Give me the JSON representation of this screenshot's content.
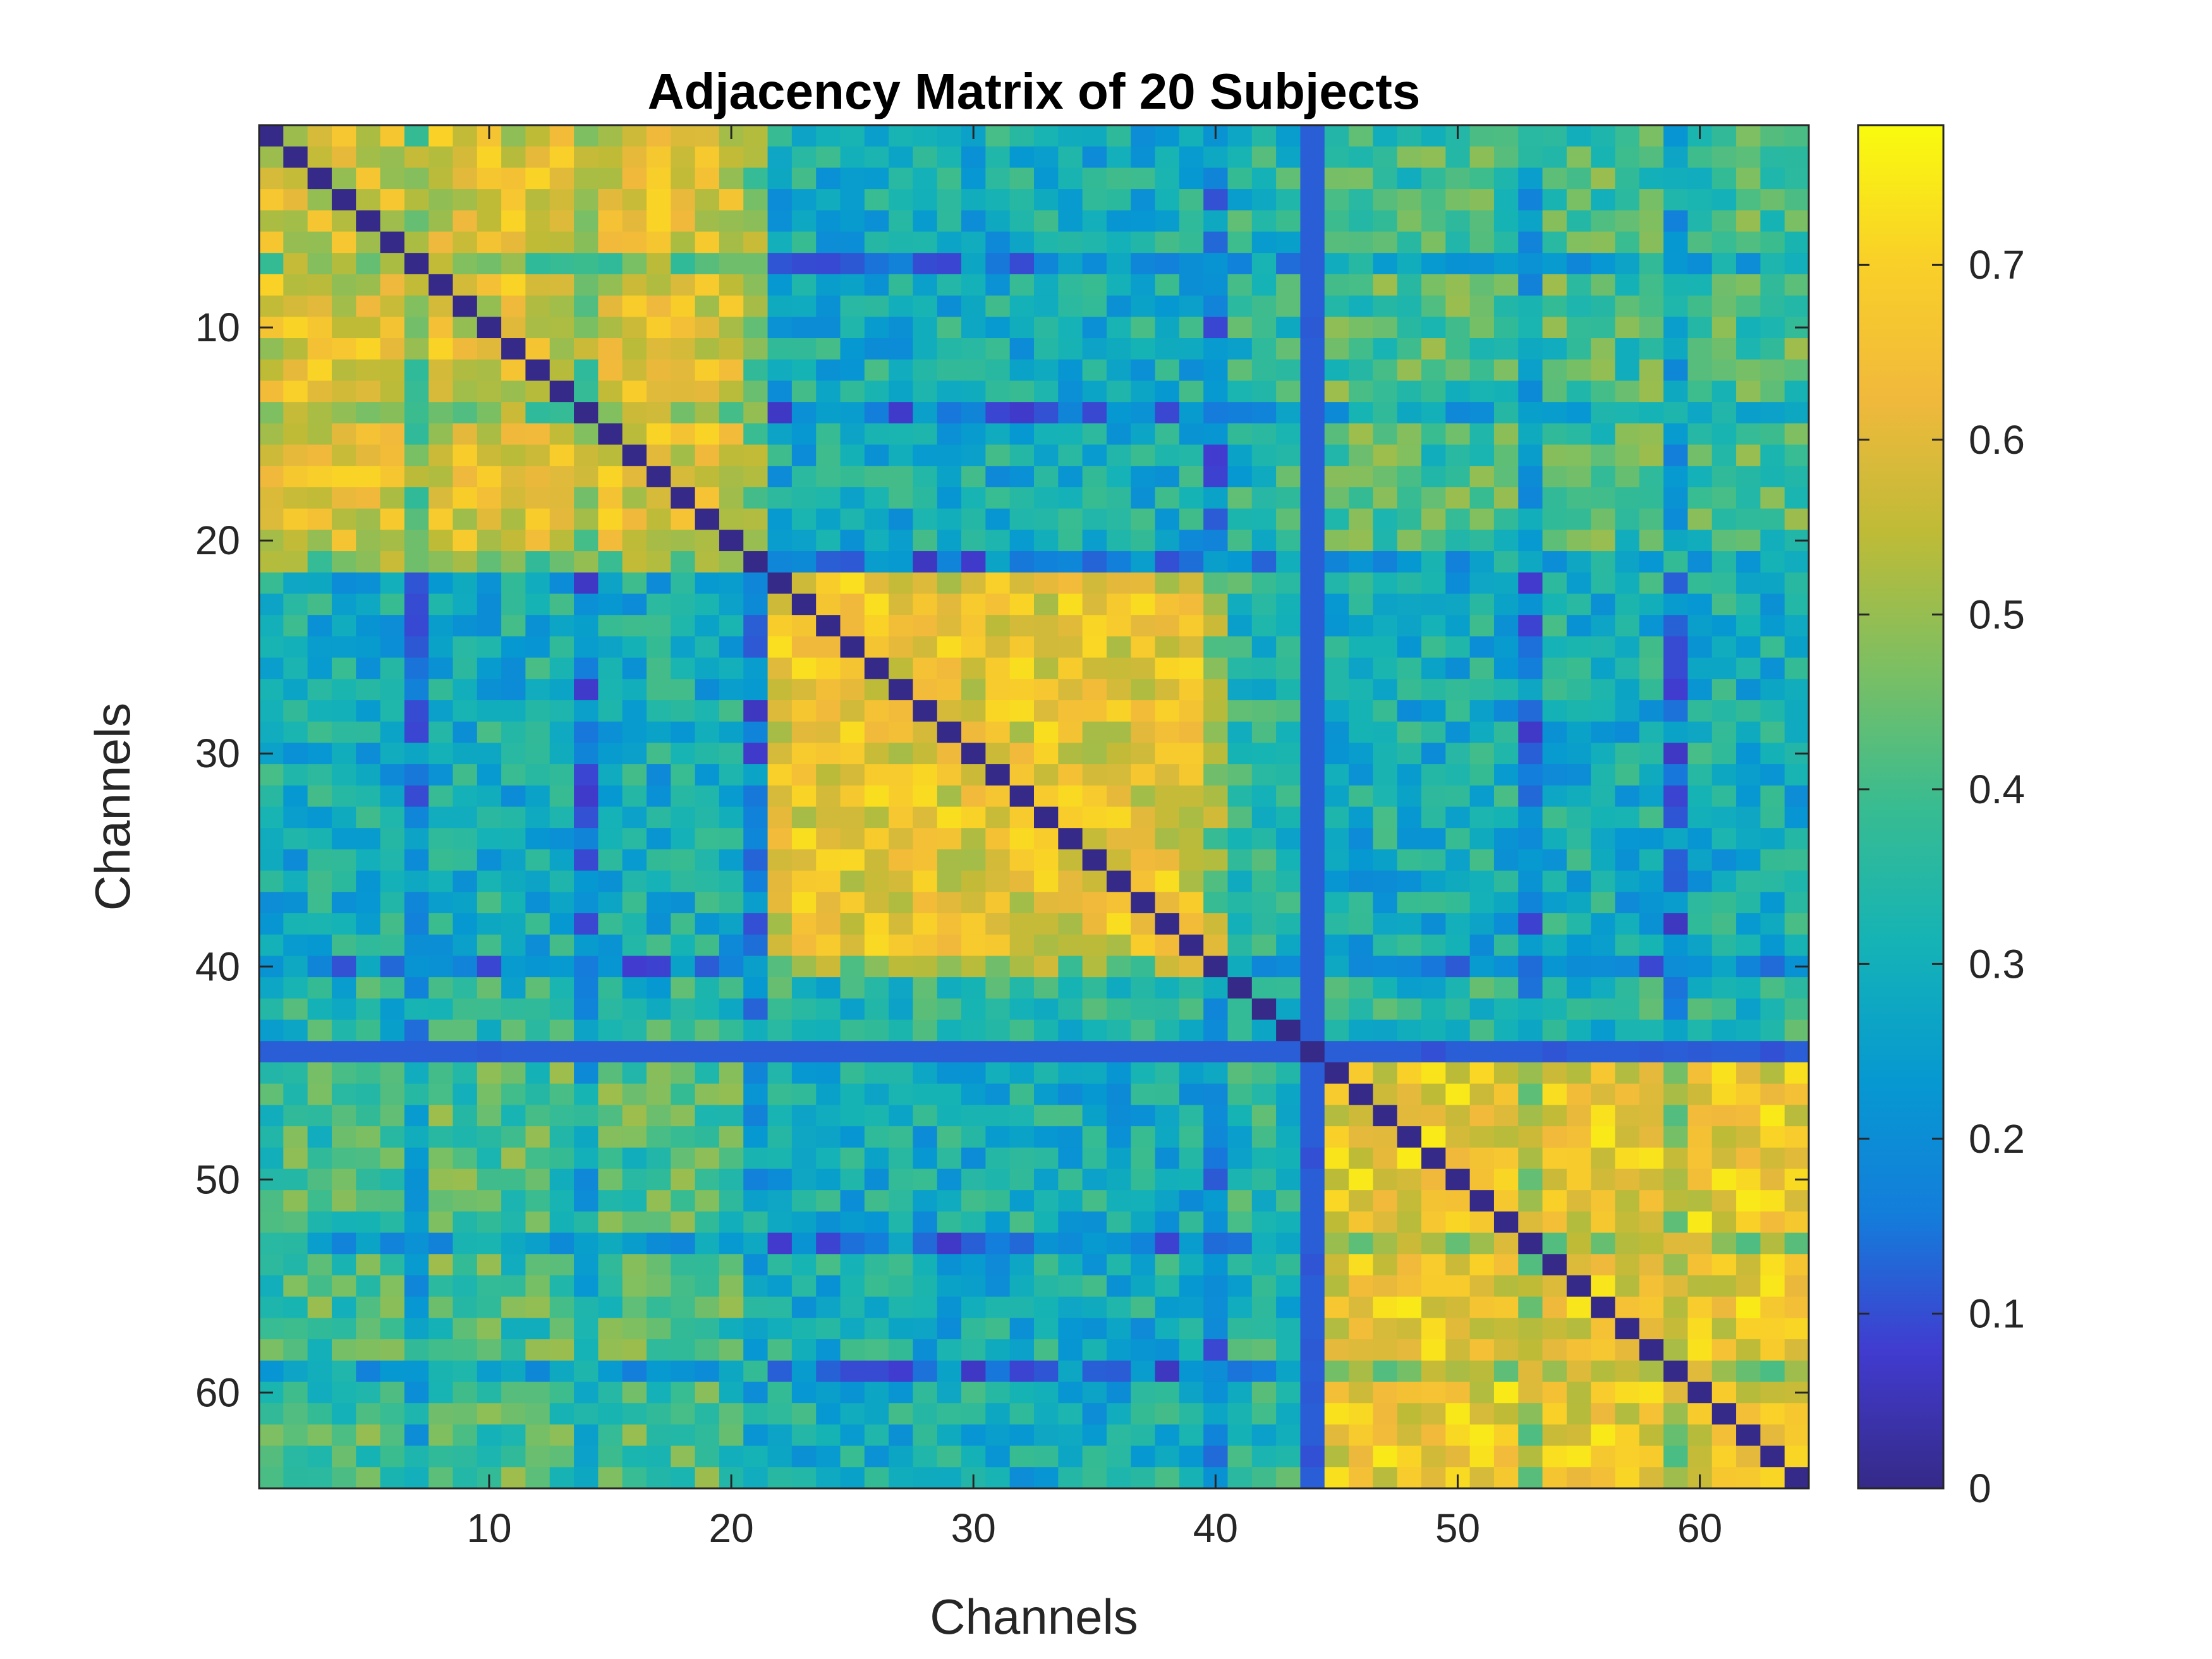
{
  "chart_data": {
    "type": "heatmap",
    "title": "Adjacency Matrix of 20 Subjects",
    "xlabel": "Channels",
    "ylabel": "Channels",
    "size": 64,
    "xlim": [
      0.5,
      64.5
    ],
    "ylim": [
      0.5,
      64.5
    ],
    "y_reversed": true,
    "x_ticks": [
      10,
      20,
      30,
      40,
      50,
      60
    ],
    "y_ticks": [
      10,
      20,
      30,
      40,
      50,
      60
    ],
    "colorbar": {
      "range": [
        0,
        0.78
      ],
      "ticks": [
        0,
        0.1,
        0.2,
        0.3,
        0.4,
        0.5,
        0.6,
        0.7
      ],
      "tick_labels": [
        "0",
        "0.1",
        "0.2",
        "0.3",
        "0.4",
        "0.5",
        "0.6",
        "0.7"
      ],
      "colormap": "parula"
    },
    "grid": false,
    "diagonal": 0,
    "low_channels": [
      7,
      14,
      21,
      40,
      44,
      53,
      59
    ],
    "off_diagonal_blocks": [
      {
        "rows": [
          1,
          21
        ],
        "cols": [
          22,
          40
        ],
        "value": 0.3
      },
      {
        "rows": [
          1,
          21
        ],
        "cols": [
          45,
          64
        ],
        "value": 0.4
      },
      {
        "rows": [
          22,
          40
        ],
        "cols": [
          45,
          64
        ],
        "value": 0.3
      }
    ],
    "blocks": [
      {
        "channels": [
          1,
          21
        ],
        "value": 0.6
      },
      {
        "channels": [
          22,
          40
        ],
        "value": 0.62
      },
      {
        "channels": [
          45,
          64
        ],
        "value": 0.64
      }
    ]
  }
}
